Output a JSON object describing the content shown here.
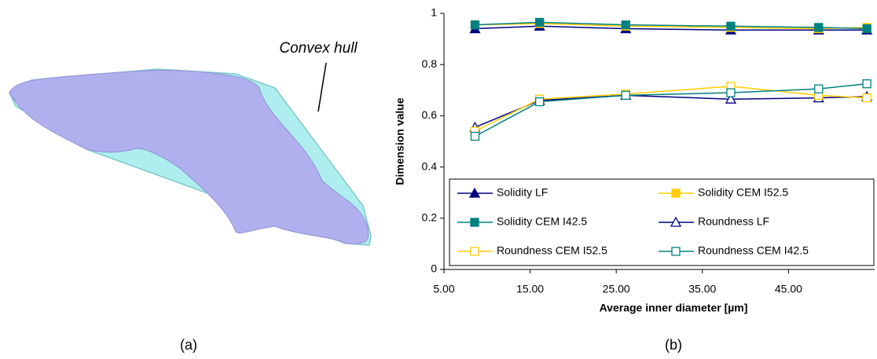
{
  "diagram": {
    "label": "Convex hull",
    "caption": "(a)"
  },
  "chart_data": {
    "type": "line",
    "caption": "(b)",
    "x_label": "Average inner diameter [µm]",
    "y_label": "Dimension value",
    "x": [
      8.6,
      16.1,
      26.1,
      38.3,
      48.5,
      54.1
    ],
    "xlim": [
      5,
      55
    ],
    "xticks": [
      {
        "value": 5,
        "label": "5.00"
      },
      {
        "value": 15,
        "label": "15.00"
      },
      {
        "value": 25,
        "label": "25.00"
      },
      {
        "value": 35,
        "label": "35.00"
      },
      {
        "value": 45,
        "label": "45.00"
      }
    ],
    "ylim": [
      0,
      1
    ],
    "yticks": [
      0,
      0.2,
      0.4,
      0.6,
      0.8,
      1
    ],
    "grid": false,
    "legend": "bottom",
    "series": [
      {
        "name": "Solidity LF",
        "color": "#000080",
        "marker": "triangle",
        "filled": true,
        "values": [
          0.94,
          0.95,
          0.94,
          0.935,
          0.935,
          0.935
        ]
      },
      {
        "name": "Solidity CEM I52.5",
        "color": "#ffcc00",
        "marker": "square",
        "filled": true,
        "values": [
          0.955,
          0.96,
          0.95,
          0.945,
          0.94,
          0.945
        ]
      },
      {
        "name": "Solidity CEM I42.5",
        "color": "#008080",
        "marker": "square",
        "filled": true,
        "values": [
          0.955,
          0.965,
          0.955,
          0.95,
          0.945,
          0.94
        ]
      },
      {
        "name": "Roundness LF",
        "color": "#000080",
        "marker": "triangle",
        "filled": false,
        "values": [
          0.555,
          0.66,
          0.68,
          0.665,
          0.67,
          0.675
        ]
      },
      {
        "name": "Roundness CEM I52.5",
        "color": "#ffcc00",
        "marker": "square",
        "filled": false,
        "values": [
          0.54,
          0.665,
          0.685,
          0.715,
          0.68,
          0.67
        ]
      },
      {
        "name": "Roundness CEM I42.5",
        "color": "#008080",
        "marker": "square",
        "filled": false,
        "values": [
          0.52,
          0.655,
          0.68,
          0.69,
          0.705,
          0.725
        ]
      }
    ]
  }
}
